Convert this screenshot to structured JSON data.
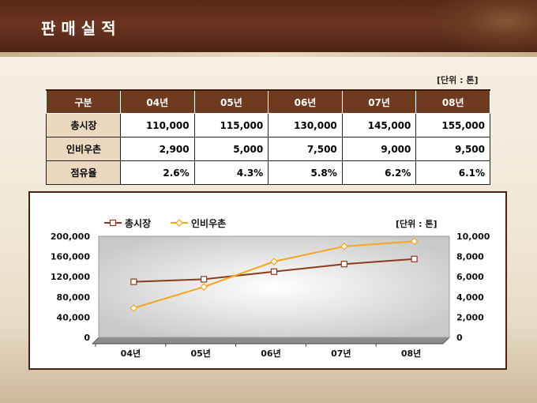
{
  "header": {
    "title": "판매실적"
  },
  "table": {
    "unit": "[단위 : 톤]",
    "columns": [
      "구분",
      "04년",
      "05년",
      "06년",
      "07년",
      "08년"
    ],
    "rows": [
      {
        "label": "총시장",
        "values": [
          "110,000",
          "115,000",
          "130,000",
          "145,000",
          "155,000"
        ]
      },
      {
        "label": "인비우촌",
        "values": [
          "2,900",
          "5,000",
          "7,500",
          "9,000",
          "9,500"
        ]
      },
      {
        "label": "점유율",
        "values": [
          "2.6%",
          "4.3%",
          "5.8%",
          "6.2%",
          "6.1%"
        ]
      }
    ]
  },
  "chart_data": {
    "type": "line",
    "categories": [
      "04년",
      "05년",
      "06년",
      "07년",
      "08년"
    ],
    "unit_label": "[단위 : 톤]",
    "series": [
      {
        "name": "총시장",
        "axis": "left",
        "values": [
          110000,
          115000,
          130000,
          145000,
          155000
        ],
        "color": "#8b3a1e",
        "marker": "square"
      },
      {
        "name": "인비우촌",
        "axis": "right",
        "values": [
          2900,
          5000,
          7500,
          9000,
          9500
        ],
        "color": "#f5a623",
        "marker": "diamond"
      }
    ],
    "y_left": {
      "ylim": [
        0,
        200000
      ],
      "ticks": [
        "0",
        "40,000",
        "80,000",
        "120,000",
        "160,000",
        "200,000"
      ]
    },
    "y_right": {
      "ylim": [
        0,
        10000
      ],
      "ticks": [
        "0",
        "2,000",
        "4,000",
        "6,000",
        "8,000",
        "10,000"
      ]
    },
    "legend": "top-left",
    "grid": false
  }
}
